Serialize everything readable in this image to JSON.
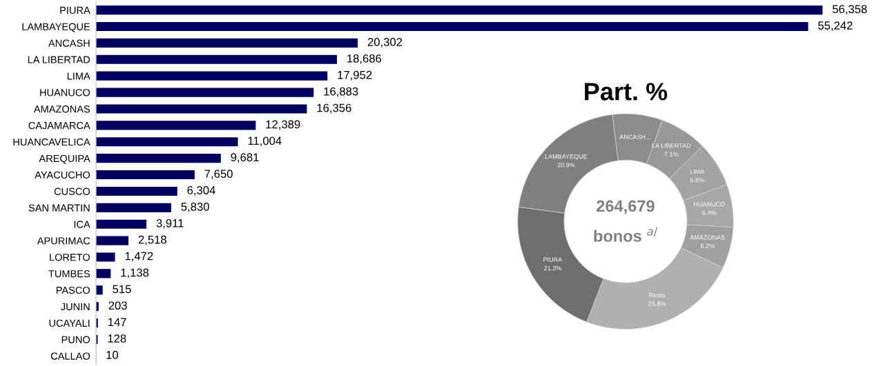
{
  "chart_data": [
    {
      "type": "bar",
      "orientation": "horizontal",
      "color": "#000060",
      "categories": [
        "PIURA",
        "LAMBAYEQUE",
        "ANCASH",
        "LA LIBERTAD",
        "LIMA",
        "HUANUCO",
        "AMAZONAS",
        "CAJAMARCA",
        "HUANCAVELICA",
        "AREQUIPA",
        "AYACUCHO",
        "CUSCO",
        "SAN MARTIN",
        "ICA",
        "APURIMAC",
        "LORETO",
        "TUMBES",
        "PASCO",
        "JUNIN",
        "UCAYALI",
        "PUNO",
        "CALLAO"
      ],
      "values": [
        56358,
        55242,
        20302,
        18686,
        17952,
        16883,
        16356,
        12389,
        11004,
        9681,
        7650,
        6304,
        5830,
        3911,
        2518,
        1472,
        1138,
        515,
        203,
        147,
        128,
        10
      ],
      "value_labels": [
        "56,358",
        "55,242",
        "20,302",
        "18,686",
        "17,952",
        "16,883",
        "16,356",
        "12,389",
        "11,004",
        "9,681",
        "7,650",
        "6,304",
        "5,830",
        "3,911",
        "2,518",
        "1,472",
        "1,138",
        "515",
        "203",
        "147",
        "128",
        "10"
      ]
    },
    {
      "type": "donut",
      "title": "Part. %",
      "categories": [
        "ANCASH...",
        "LA LIBERTAD",
        "LIMA",
        "HUANUCO",
        "AMAZONAS",
        "Resto",
        "PIURA",
        "LAMBAYEQUE"
      ],
      "values": [
        7.5,
        7.1,
        6.8,
        6.4,
        6.2,
        23.8,
        21.3,
        20.9
      ],
      "value_labels": [
        null,
        "7.1%",
        "6.8%",
        "6.4%",
        "6.2%",
        "23.8%",
        "21.3%",
        "20.9%"
      ],
      "colors": [
        "#8c8c8c",
        "#999999",
        "#a3a3a3",
        "#a8a8a8",
        "#a0a0a0",
        "#b0b0b0",
        "#6e6e6e",
        "#7f7f7f"
      ],
      "annotations": [
        "264,679",
        "bonos $^{a/}$"
      ]
    }
  ]
}
